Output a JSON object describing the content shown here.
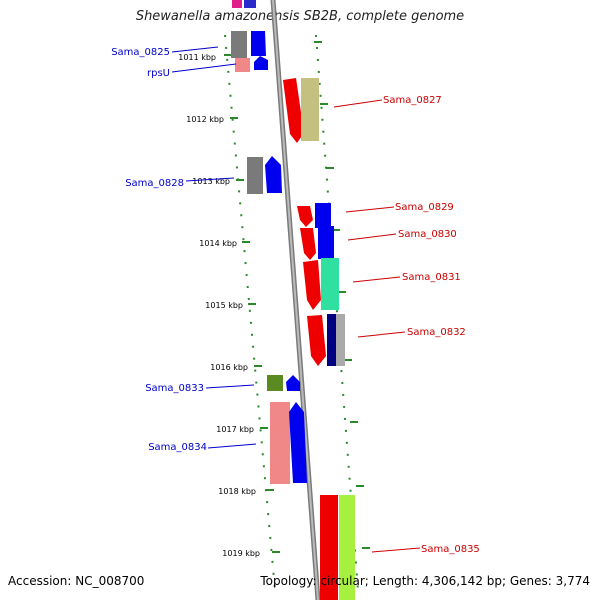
{
  "title": "Shewanella amazonensis SB2B, complete genome",
  "accession": "Accession: NC_008700",
  "topology": "Topology: circular; Length: 4,306,142 bp; Genes: 3,774",
  "colors": {
    "backbone": "#888888",
    "ticks": "#2a8a2a",
    "label_left": "#0000cc",
    "label_right": "#cc0000"
  },
  "kbp_ticks": [
    "1011 kbp",
    "1012 kbp",
    "1013 kbp",
    "1014 kbp",
    "1015 kbp",
    "1016 kbp",
    "1017 kbp",
    "1018 kbp",
    "1019 kbp"
  ],
  "gene_labels": [
    {
      "name": "Sama_0825",
      "strand": "left"
    },
    {
      "name": "rpsU",
      "strand": "left"
    },
    {
      "name": "Sama_0827",
      "strand": "right"
    },
    {
      "name": "Sama_0828",
      "strand": "left"
    },
    {
      "name": "Sama_0829",
      "strand": "right"
    },
    {
      "name": "Sama_0830",
      "strand": "right"
    },
    {
      "name": "Sama_0831",
      "strand": "right"
    },
    {
      "name": "Sama_0832",
      "strand": "right"
    },
    {
      "name": "Sama_0833",
      "strand": "left"
    },
    {
      "name": "Sama_0834",
      "strand": "left"
    },
    {
      "name": "Sama_0835",
      "strand": "right"
    }
  ]
}
